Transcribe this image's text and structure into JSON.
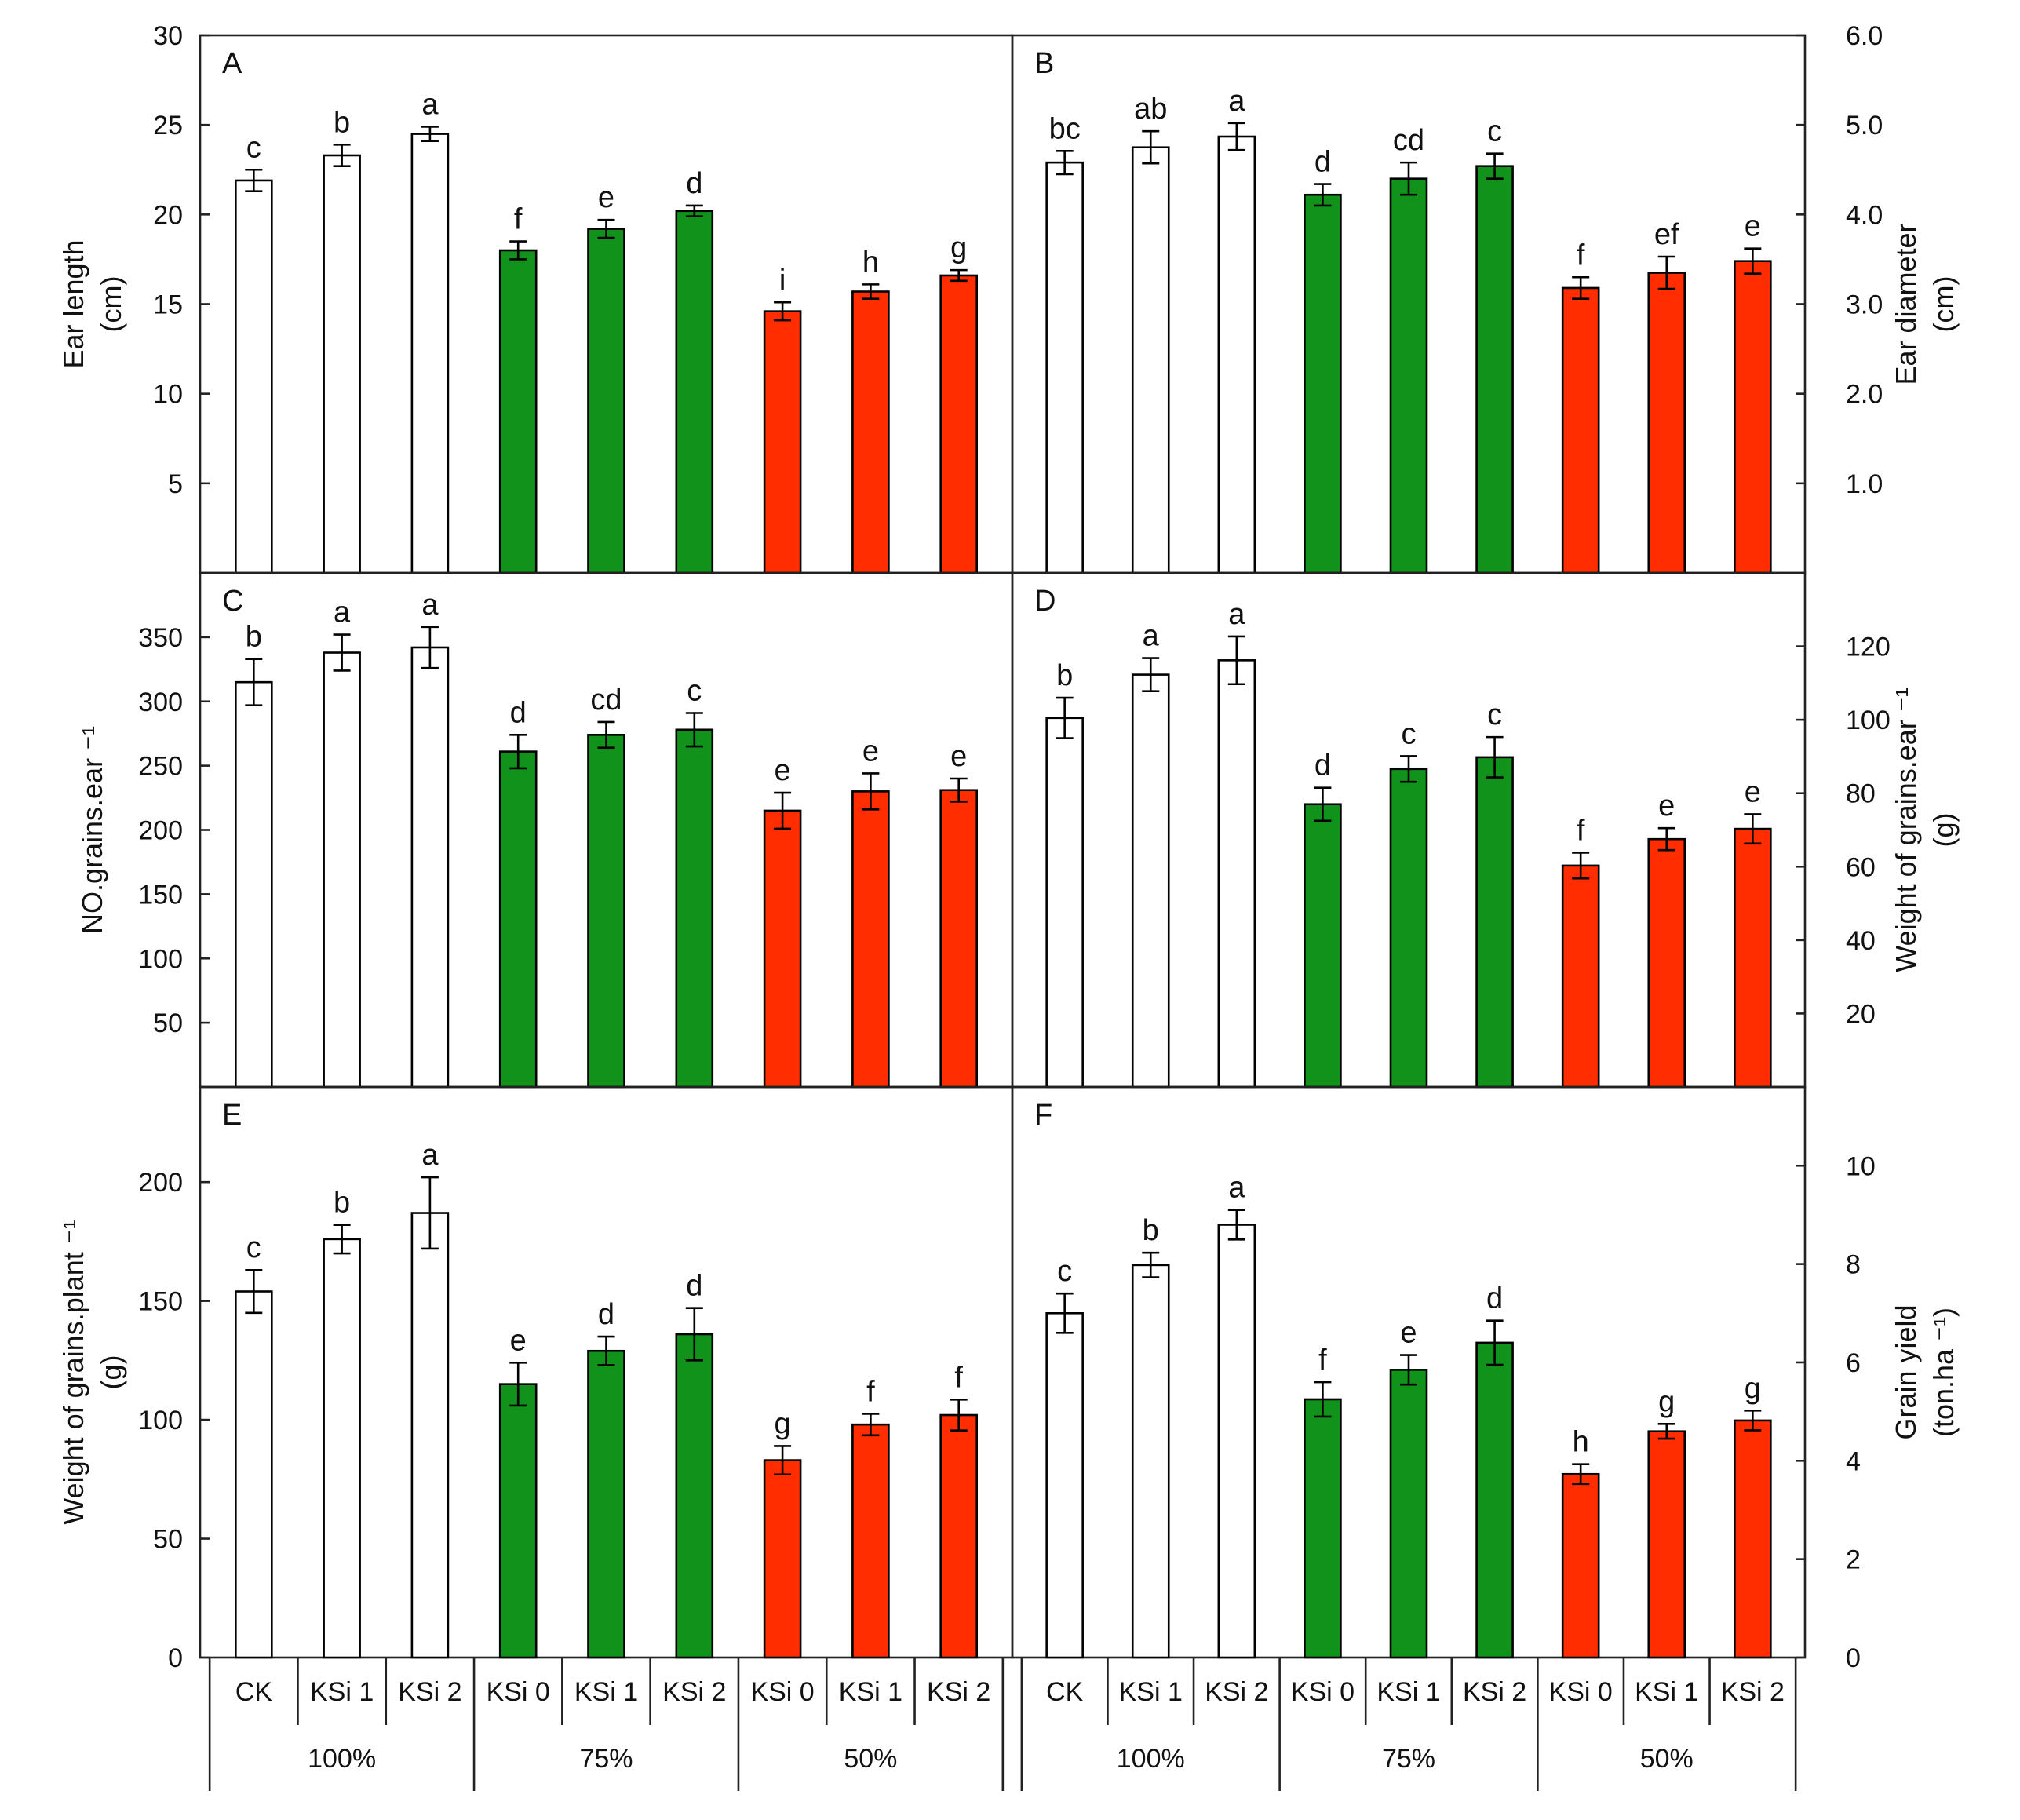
{
  "chart_data": {
    "type": "bar",
    "colors": {
      "100%": "#ffffff",
      "75%": "#11921a",
      "50%": "#ff2d00"
    },
    "x_axis": {
      "categories": [
        "CK",
        "KSi 1",
        "KSi 2",
        "KSi 0",
        "KSi 1",
        "KSi 2",
        "KSi 0",
        "KSi 1",
        "KSi 2"
      ],
      "groups": [
        {
          "label": "100%",
          "span": 3
        },
        {
          "label": "75%",
          "span": 3
        },
        {
          "label": "50%",
          "span": 3
        }
      ]
    },
    "panels": [
      {
        "id": "A",
        "ylabel": [
          "Ear length",
          "(cm)"
        ],
        "axis_side": "left",
        "ylim": [
          0,
          30
        ],
        "ticks": [
          5,
          10,
          15,
          20,
          25,
          30
        ],
        "tick_labels": [
          "5",
          "10",
          "15",
          "20",
          "25",
          "30"
        ],
        "values": [
          21.9,
          23.3,
          24.5,
          18.0,
          19.2,
          20.2,
          14.6,
          15.7,
          16.6
        ],
        "errors": [
          0.6,
          0.6,
          0.4,
          0.5,
          0.5,
          0.3,
          0.5,
          0.4,
          0.3
        ],
        "letters": [
          "c",
          "b",
          "a",
          "f",
          "e",
          "d",
          "i",
          "h",
          "g"
        ]
      },
      {
        "id": "B",
        "ylabel": [
          "Ear diameter",
          "(cm)"
        ],
        "axis_side": "right",
        "ylim": [
          0,
          6
        ],
        "ticks": [
          1,
          2,
          3,
          4,
          5,
          6
        ],
        "tick_labels": [
          "1.0",
          "2.0",
          "3.0",
          "4.0",
          "5.0",
          "6.0"
        ],
        "values": [
          4.58,
          4.75,
          4.87,
          4.22,
          4.4,
          4.54,
          3.18,
          3.35,
          3.48
        ],
        "errors": [
          0.13,
          0.18,
          0.15,
          0.12,
          0.18,
          0.14,
          0.12,
          0.18,
          0.14
        ],
        "letters": [
          "bc",
          "ab",
          "a",
          "d",
          "cd",
          "c",
          "f",
          "ef",
          "e"
        ]
      },
      {
        "id": "C",
        "ylabel": [
          "NO.grains.ear ⁻¹"
        ],
        "axis_side": "left",
        "ylim": [
          0,
          400
        ],
        "ticks": [
          50,
          100,
          150,
          200,
          250,
          300,
          350
        ],
        "tick_labels": [
          "50",
          "100",
          "150",
          "200",
          "250",
          "300",
          "350"
        ],
        "values": [
          315,
          338,
          342,
          261,
          274,
          278,
          215,
          230,
          231
        ],
        "errors": [
          18,
          14,
          16,
          13,
          10,
          13,
          14,
          14,
          9
        ],
        "letters": [
          "b",
          "a",
          "a",
          "d",
          "cd",
          "c",
          "e",
          "e",
          "e"
        ]
      },
      {
        "id": "D",
        "ylabel": [
          "Weight of grains.ear ⁻¹",
          "(g)"
        ],
        "axis_side": "right",
        "ylim": [
          0,
          140
        ],
        "ticks": [
          20,
          40,
          60,
          80,
          100,
          120
        ],
        "tick_labels": [
          "20",
          "40",
          "60",
          "80",
          "100",
          "120"
        ],
        "values": [
          100.5,
          112.3,
          116.2,
          77.0,
          86.6,
          89.8,
          60.3,
          67.5,
          70.3
        ],
        "errors": [
          5.5,
          4.5,
          6.5,
          4.5,
          3.5,
          5.5,
          3.5,
          3.0,
          4.0
        ],
        "letters": [
          "b",
          "a",
          "a",
          "d",
          "c",
          "c",
          "f",
          "e",
          "e"
        ]
      },
      {
        "id": "E",
        "ylabel": [
          "Weight of grains.plant ⁻¹",
          "(g)"
        ],
        "axis_side": "left",
        "ylim": [
          0,
          240
        ],
        "ticks": [
          0,
          50,
          100,
          150,
          200
        ],
        "tick_labels": [
          "0",
          "50",
          "100",
          "150",
          "200"
        ],
        "values": [
          154,
          176,
          187,
          115,
          129,
          136,
          83,
          98,
          102
        ],
        "errors": [
          9,
          6,
          15,
          9,
          6,
          11,
          6,
          4.5,
          6.5
        ],
        "letters": [
          "c",
          "b",
          "a",
          "e",
          "d",
          "d",
          "g",
          "f",
          "f"
        ]
      },
      {
        "id": "F",
        "ylabel": [
          "Grain yield",
          "(ton.ha ⁻¹)"
        ],
        "axis_side": "right",
        "ylim": [
          0,
          11.6
        ],
        "ticks": [
          0,
          2,
          4,
          6,
          8,
          10
        ],
        "tick_labels": [
          "0",
          "2",
          "4",
          "6",
          "8",
          "10"
        ],
        "values": [
          7.0,
          7.98,
          8.8,
          5.25,
          5.85,
          6.4,
          3.73,
          4.6,
          4.82
        ],
        "errors": [
          0.4,
          0.25,
          0.3,
          0.35,
          0.3,
          0.45,
          0.2,
          0.15,
          0.2
        ],
        "letters": [
          "c",
          "b",
          "a",
          "f",
          "e",
          "d",
          "h",
          "g",
          "g"
        ]
      }
    ]
  }
}
